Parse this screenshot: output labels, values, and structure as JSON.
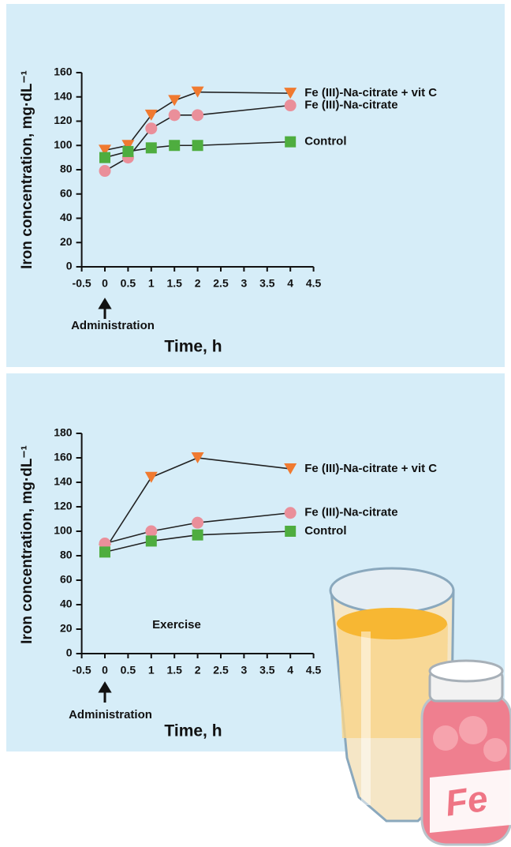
{
  "chart_data": [
    {
      "type": "line",
      "ylabel": "Iron concentration, mg·dL⁻¹",
      "xlabel": "Time, h",
      "annotations": [
        "Administration"
      ],
      "xlim": [
        -0.5,
        4.5
      ],
      "xticks": [
        -0.5,
        0,
        0.5,
        1,
        1.5,
        2,
        2.5,
        3,
        3.5,
        4,
        4.5
      ],
      "ylim": [
        0,
        160
      ],
      "yticks": [
        0,
        20,
        40,
        60,
        80,
        100,
        120,
        140,
        160
      ],
      "x": [
        0,
        0.5,
        1,
        1.5,
        2,
        4
      ],
      "series": [
        {
          "name": "Fe (III)-Na-citrate + vit C",
          "color": "#f07a30",
          "marker": "triangle-down",
          "values": [
            96,
            100,
            125,
            137,
            144,
            143
          ]
        },
        {
          "name": "Fe (III)-Na-citrate",
          "color": "#ea8f9a",
          "marker": "circle",
          "values": [
            79,
            90,
            114,
            125,
            125,
            133
          ]
        },
        {
          "name": "Control",
          "color": "#4ead3f",
          "marker": "square",
          "values": [
            90,
            95,
            98,
            100,
            100,
            103
          ]
        }
      ]
    },
    {
      "type": "line",
      "ylabel": "Iron concentration, mg·dL⁻¹",
      "xlabel": "Time, h",
      "annotations": [
        "Administration",
        "Exercise"
      ],
      "xlim": [
        -0.5,
        4.5
      ],
      "xticks": [
        -0.5,
        0,
        0.5,
        1,
        1.5,
        2,
        2.5,
        3,
        3.5,
        4,
        4.5
      ],
      "ylim": [
        0,
        180
      ],
      "yticks": [
        0,
        20,
        40,
        60,
        80,
        100,
        120,
        140,
        160,
        180
      ],
      "x": [
        0,
        1,
        2,
        4
      ],
      "series": [
        {
          "name": "Fe (III)-Na-citrate + vit C",
          "color": "#f07a30",
          "marker": "triangle-down",
          "values": [
            85,
            144,
            160,
            151
          ]
        },
        {
          "name": "Fe (III)-Na-citrate",
          "color": "#ea8f9a",
          "marker": "circle",
          "values": [
            90,
            100,
            107,
            115
          ]
        },
        {
          "name": "Control",
          "color": "#4ead3f",
          "marker": "square",
          "values": [
            83,
            92,
            97,
            100
          ]
        }
      ]
    }
  ],
  "illustration": {
    "label": "Fe"
  }
}
